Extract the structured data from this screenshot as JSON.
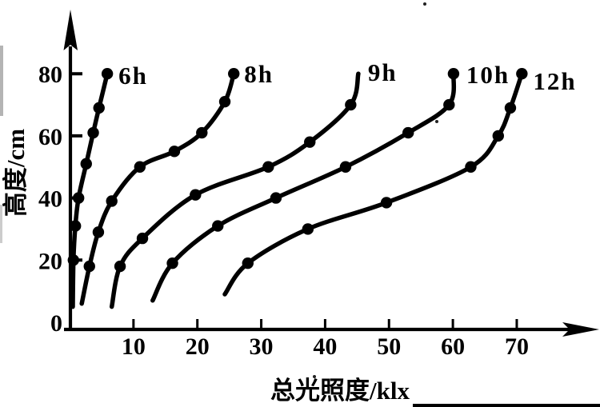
{
  "figure": {
    "background_color": "#ffffff",
    "ink_color": "#000000",
    "description": "Scanned line chart: plant height vs total illuminance for different daily light durations"
  },
  "chart_data": {
    "type": "line",
    "title": "",
    "xlabel": "总光照度/klx",
    "ylabel": "高度/cm",
    "xlim": [
      0,
      82
    ],
    "ylim": [
      0,
      100
    ],
    "grid": false,
    "legend_position": "inline-labels-at-curve-tops",
    "x_ticks": [
      10,
      20,
      30,
      40,
      50,
      60,
      70
    ],
    "y_ticks": [
      0,
      20,
      40,
      60,
      80
    ],
    "marker": "filled-circle",
    "series": [
      {
        "name": "6h",
        "points": [
          {
            "x": 0.5,
            "y": 5,
            "dot": false
          },
          {
            "x": 0.6,
            "y": 20,
            "dot": true
          },
          {
            "x": 0.9,
            "y": 31,
            "dot": true
          },
          {
            "x": 1.4,
            "y": 40,
            "dot": true
          },
          {
            "x": 2.6,
            "y": 51,
            "dot": true
          },
          {
            "x": 3.7,
            "y": 61,
            "dot": true
          },
          {
            "x": 4.6,
            "y": 69,
            "dot": true
          },
          {
            "x": 5.9,
            "y": 80,
            "dot": true
          }
        ]
      },
      {
        "name": "8h",
        "points": [
          {
            "x": 1.9,
            "y": 6,
            "dot": false
          },
          {
            "x": 3.1,
            "y": 18,
            "dot": true
          },
          {
            "x": 4.5,
            "y": 29,
            "dot": true
          },
          {
            "x": 6.6,
            "y": 39,
            "dot": true
          },
          {
            "x": 11.0,
            "y": 50,
            "dot": true
          },
          {
            "x": 16.4,
            "y": 55,
            "dot": true
          },
          {
            "x": 20.7,
            "y": 61,
            "dot": true
          },
          {
            "x": 24.3,
            "y": 71,
            "dot": true
          },
          {
            "x": 25.7,
            "y": 80,
            "dot": true
          }
        ]
      },
      {
        "name": "9h",
        "points": [
          {
            "x": 6.6,
            "y": 5,
            "dot": false
          },
          {
            "x": 7.9,
            "y": 18,
            "dot": true
          },
          {
            "x": 11.4,
            "y": 27,
            "dot": true
          },
          {
            "x": 19.7,
            "y": 41,
            "dot": true
          },
          {
            "x": 31.1,
            "y": 50,
            "dot": true
          },
          {
            "x": 37.6,
            "y": 58,
            "dot": true
          },
          {
            "x": 44.0,
            "y": 70,
            "dot": true
          },
          {
            "x": 45.2,
            "y": 80,
            "dot": false
          }
        ]
      },
      {
        "name": "10h",
        "points": [
          {
            "x": 13.0,
            "y": 7,
            "dot": false
          },
          {
            "x": 16.1,
            "y": 19,
            "dot": true
          },
          {
            "x": 23.2,
            "y": 31,
            "dot": true
          },
          {
            "x": 32.3,
            "y": 40,
            "dot": true
          },
          {
            "x": 43.2,
            "y": 50,
            "dot": true
          },
          {
            "x": 53.0,
            "y": 61,
            "dot": true
          },
          {
            "x": 59.4,
            "y": 70,
            "dot": true
          },
          {
            "x": 60.1,
            "y": 80,
            "dot": true
          }
        ]
      },
      {
        "name": "12h",
        "points": [
          {
            "x": 24.3,
            "y": 9,
            "dot": false
          },
          {
            "x": 27.9,
            "y": 19,
            "dot": true
          },
          {
            "x": 37.3,
            "y": 30,
            "dot": true
          },
          {
            "x": 49.6,
            "y": 38.5,
            "dot": true
          },
          {
            "x": 62.8,
            "y": 50,
            "dot": true
          },
          {
            "x": 67.1,
            "y": 60,
            "dot": true
          },
          {
            "x": 69.0,
            "y": 69,
            "dot": true
          },
          {
            "x": 70.8,
            "y": 80,
            "dot": true
          }
        ]
      }
    ]
  }
}
